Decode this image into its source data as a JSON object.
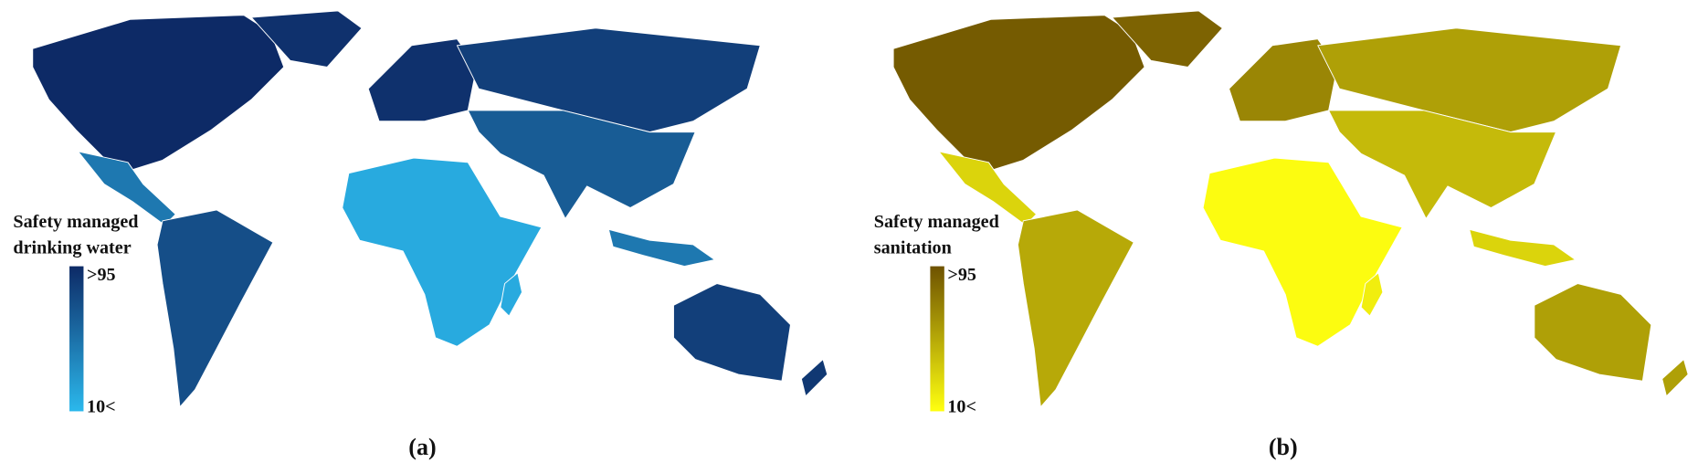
{
  "panels": [
    {
      "legend_title": [
        "Safety managed",
        "drinking water"
      ],
      "legend_max": ">95",
      "legend_min": "10<",
      "label": "(a)",
      "color_high": "#0d2a66",
      "color_low": "#2bb8ec"
    },
    {
      "legend_title": [
        "Safety managed",
        "sanitation"
      ],
      "legend_max": ">95",
      "legend_min": "10<",
      "label": "(b)",
      "color_high": "#6e5200",
      "color_low": "#ffff10"
    }
  ]
}
